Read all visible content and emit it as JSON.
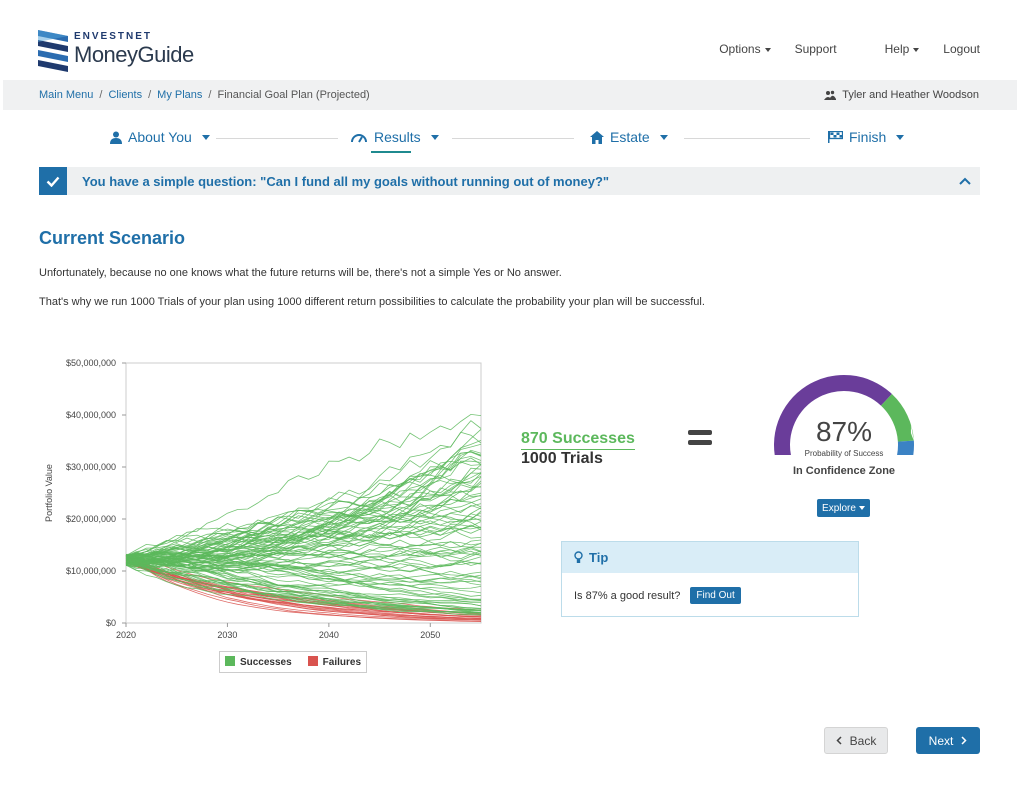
{
  "brand": {
    "company": "ENVESTNET",
    "product": "MoneyGuide"
  },
  "topnav": [
    {
      "label": "Options",
      "has_caret": true
    },
    {
      "label": "Support",
      "has_caret": false
    },
    {
      "label": "Help",
      "has_caret": true
    },
    {
      "label": "Logout",
      "has_caret": false
    }
  ],
  "breadcrumb": [
    "Main Menu",
    "Clients",
    "My Plans",
    "Financial Goal Plan (Projected)"
  ],
  "client_name": "Tyler and Heather Woodson",
  "steps": [
    {
      "label": "About You",
      "icon": "user-icon"
    },
    {
      "label": "Results",
      "icon": "gauge-icon",
      "active": true
    },
    {
      "label": "Estate",
      "icon": "home-icon"
    },
    {
      "label": "Finish",
      "icon": "flag-icon"
    }
  ],
  "question": "You have a simple question: \"Can I fund all my goals without running out of money?\"",
  "scenario": {
    "title": "Current Scenario",
    "para1": "Unfortunately, because no one knows what the future returns will be, there's not a simple Yes or No answer.",
    "para2": "That's why we run 1000 Trials of your plan using 1000 different return possibilities to calculate the probability your plan will be successful."
  },
  "chart_data": {
    "type": "line",
    "ylabel": "Portfolio Value",
    "xlabel": "",
    "x_ticks": [
      "2020",
      "2030",
      "2040",
      "2050"
    ],
    "y_ticks": [
      "$0",
      "$10,000,000",
      "$20,000,000",
      "$30,000,000",
      "$40,000,000",
      "$50,000,000"
    ],
    "xlim": [
      2020,
      2055
    ],
    "ylim": [
      0,
      50000000
    ],
    "legend": [
      {
        "name": "Successes",
        "color": "#5cb85c"
      },
      {
        "name": "Failures",
        "color": "#d9534f"
      }
    ],
    "successes_end_range": [
      2000000,
      42000000
    ],
    "failures_end_range": [
      0,
      2000000
    ],
    "start_value": 12000000
  },
  "result": {
    "successes": "870 Successes",
    "trials": "1000 Trials",
    "percent": "87%",
    "percent_label": "Probability of Success",
    "zone": "In Confidence Zone",
    "explore": "Explore",
    "probability_value": 0.87
  },
  "tip": {
    "title": "Tip",
    "question": "Is 87% a good result?",
    "button": "Find Out"
  },
  "nav": {
    "back": "Back",
    "next": "Next"
  },
  "colors": {
    "primary": "#1f6fa8",
    "success": "#5cb85c",
    "failure": "#d9534f",
    "gauge_purple": "#6a3d9a",
    "gauge_blue": "#3b82c4"
  }
}
